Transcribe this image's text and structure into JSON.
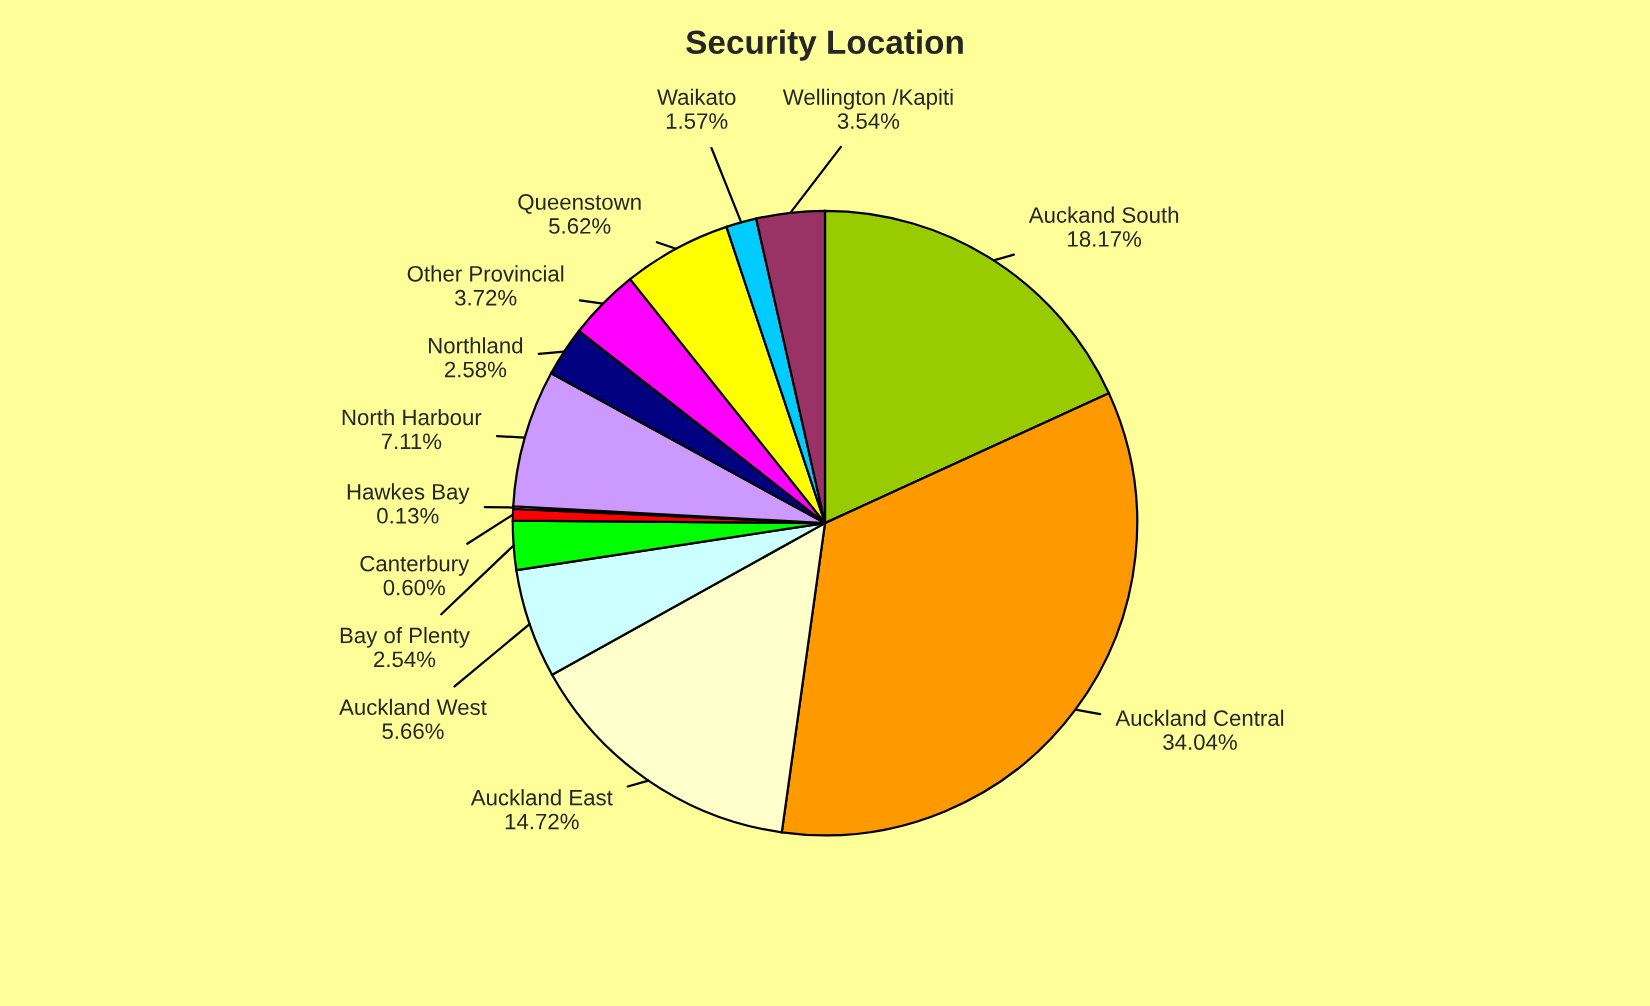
{
  "chart_data": {
    "type": "pie",
    "title": "Security Location",
    "categories": [
      "Auckand South",
      "Auckland Central",
      "Auckland East",
      "Auckland West",
      "Bay of Plenty",
      "Canterbury",
      "Hawkes Bay",
      "North Harbour",
      "Northland",
      "Other Provincial",
      "Queenstown",
      "Waikato",
      "Wellington /Kapiti"
    ],
    "values": [
      18.17,
      34.04,
      14.72,
      5.66,
      2.54,
      0.6,
      0.13,
      7.11,
      2.58,
      3.72,
      5.62,
      1.57,
      3.54
    ],
    "value_labels": [
      "18.17%",
      "34.04%",
      "14.72%",
      "5.66%",
      "2.54%",
      "0.60%",
      "0.13%",
      "7.11%",
      "2.58%",
      "3.72%",
      "5.62%",
      "1.57%",
      "3.54%"
    ],
    "colors": [
      "#99cc00",
      "#ff9900",
      "#ffffcc",
      "#ccffff",
      "#00ff00",
      "#ff0000",
      "#ffcc99",
      "#cc99ff",
      "#000080",
      "#ff00ff",
      "#ffff00",
      "#00ccff",
      "#993366"
    ]
  }
}
